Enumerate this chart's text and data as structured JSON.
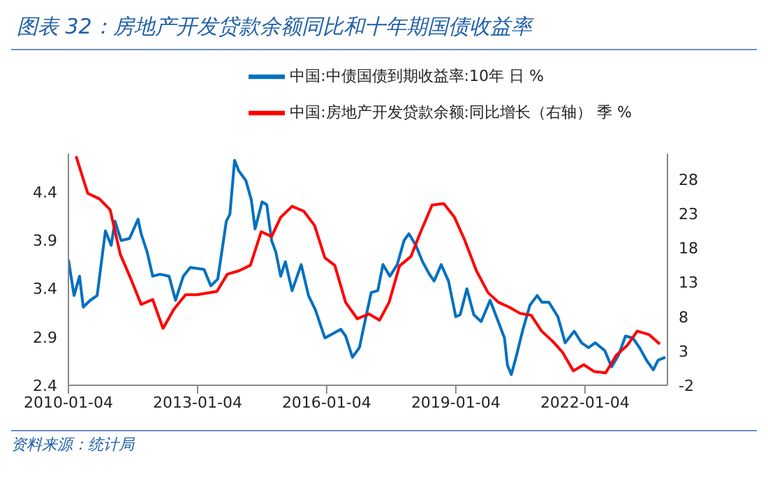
{
  "chart_data": {
    "type": "line",
    "title": "图表 32：房地产开发贷款余额同比和十年期国债收益率",
    "annotations": [
      "资料来源：统计局"
    ],
    "legend": "top",
    "marker": "none",
    "xlim": [
      "2010-01-04",
      "2023-12-05"
    ],
    "xticks": [
      "2010-01-04",
      "2013-01-04",
      "2016-01-04",
      "2019-01-04",
      "2022-01-04"
    ],
    "ylim": [
      2.4,
      4.8
    ],
    "yticks": [
      2.4,
      2.9,
      3.4,
      3.9,
      4.4
    ],
    "y2lim": [
      -2,
      31.8
    ],
    "y2ticks": [
      -2,
      3,
      8,
      13,
      18,
      23,
      28
    ],
    "series": [
      {
        "name": "中国:中债国债到期收益率:10年 日 %",
        "color": "#0070c0",
        "x": [
          "2010-01-04",
          "2010-02-21",
          "2010-04-08",
          "2010-05-10",
          "2010-07-08",
          "2010-09-05",
          "2010-10-22",
          "2010-11-14",
          "2011-01-02",
          "2011-02-03",
          "2011-03-27",
          "2011-06-06",
          "2011-08-18",
          "2011-09-13",
          "2011-11-03",
          "2011-12-20",
          "2012-02-21",
          "2012-05-07",
          "2012-07-01",
          "2012-09-05",
          "2012-11-03",
          "2013-02-28",
          "2013-04-26",
          "2013-06-24",
          "2013-09-05",
          "2013-10-05",
          "2013-11-14",
          "2013-12-20",
          "2014-02-18",
          "2014-04-05",
          "2014-05-07",
          "2014-07-05",
          "2014-08-14",
          "2014-09-24",
          "2014-10-30",
          "2014-12-10",
          "2015-01-19",
          "2015-03-17",
          "2015-06-02",
          "2015-08-03",
          "2015-10-01",
          "2015-12-20",
          "2016-02-18",
          "2016-05-03",
          "2016-06-13",
          "2016-08-10",
          "2016-10-08",
          "2016-12-06",
          "2017-01-16",
          "2017-03-13",
          "2017-04-26",
          "2017-06-24",
          "2017-08-25",
          "2017-10-22",
          "2017-12-02",
          "2018-01-30",
          "2018-03-28",
          "2018-05-25",
          "2018-07-04",
          "2018-09-02",
          "2018-11-03",
          "2019-01-04",
          "2019-02-10",
          "2019-04-08",
          "2019-06-06",
          "2019-08-07",
          "2019-10-22",
          "2019-12-24",
          "2020-02-21",
          "2020-03-17",
          "2020-04-19",
          "2020-05-29",
          "2020-07-27",
          "2020-09-24",
          "2020-11-25",
          "2021-01-04",
          "2021-03-04",
          "2021-05-19",
          "2021-07-20",
          "2021-10-05",
          "2021-12-06",
          "2022-02-03",
          "2022-04-01",
          "2022-06-21",
          "2022-08-18",
          "2022-10-15",
          "2022-12-14",
          "2023-02-14",
          "2023-04-12",
          "2023-06-10",
          "2023-08-07",
          "2023-09-16",
          "2023-11-17"
        ],
        "values": [
          3.7,
          3.33,
          3.53,
          3.21,
          3.28,
          3.33,
          3.78,
          4.0,
          3.85,
          4.1,
          3.9,
          3.92,
          4.12,
          3.97,
          3.78,
          3.53,
          3.55,
          3.53,
          3.28,
          3.53,
          3.62,
          3.6,
          3.43,
          3.5,
          4.1,
          4.17,
          4.73,
          4.62,
          4.52,
          4.32,
          4.02,
          4.3,
          4.27,
          3.9,
          3.78,
          3.53,
          3.68,
          3.38,
          3.65,
          3.33,
          3.18,
          2.89,
          2.93,
          2.98,
          2.91,
          2.69,
          2.79,
          3.13,
          3.36,
          3.38,
          3.65,
          3.53,
          3.65,
          3.9,
          3.97,
          3.85,
          3.68,
          3.55,
          3.48,
          3.65,
          3.48,
          3.11,
          3.13,
          3.4,
          3.13,
          3.06,
          3.28,
          3.08,
          2.89,
          2.61,
          2.51,
          2.69,
          2.98,
          3.23,
          3.33,
          3.26,
          3.26,
          3.11,
          2.84,
          2.96,
          2.84,
          2.79,
          2.84,
          2.76,
          2.59,
          2.71,
          2.91,
          2.89,
          2.79,
          2.66,
          2.56,
          2.66,
          2.69
        ]
      },
      {
        "name": "中国:房地产开发贷款余额:同比增长（右轴） 季 %",
        "color": "#ff0000",
        "axis": "y2",
        "x": [
          "2010-03-10",
          "2010-06-17",
          "2010-09-24",
          "2010-12-24",
          "2011-03-20",
          "2011-06-06",
          "2011-09-13",
          "2011-12-20",
          "2012-03-17",
          "2012-06-17",
          "2012-09-24",
          "2013-01-01",
          "2013-06-17",
          "2013-09-13",
          "2013-12-20",
          "2014-03-28",
          "2014-06-28",
          "2014-09-24",
          "2014-12-10",
          "2015-03-17",
          "2015-06-24",
          "2015-09-24",
          "2015-12-20",
          "2016-03-13",
          "2016-06-13",
          "2016-09-20",
          "2016-12-28",
          "2017-03-28",
          "2017-06-17",
          "2017-09-13",
          "2017-12-20",
          "2018-03-10",
          "2018-06-17",
          "2018-09-24",
          "2018-12-24",
          "2019-03-20",
          "2019-06-28",
          "2019-10-05",
          "2020-01-01",
          "2020-04-01",
          "2020-07-01",
          "2020-10-05",
          "2021-01-01",
          "2021-04-12",
          "2021-06-28",
          "2021-09-28",
          "2021-12-24",
          "2022-03-24",
          "2022-06-28",
          "2022-09-28",
          "2022-12-28",
          "2023-03-24",
          "2023-07-01",
          "2023-10-01"
        ],
        "values": [
          31.4,
          26.0,
          25.2,
          23.6,
          17.1,
          14.0,
          9.8,
          10.5,
          6.3,
          9.1,
          11.2,
          11.2,
          11.7,
          14.2,
          14.7,
          15.5,
          20.4,
          19.7,
          22.5,
          24.1,
          23.4,
          21.3,
          16.6,
          15.5,
          10.1,
          7.7,
          8.4,
          7.5,
          10.1,
          15.4,
          16.8,
          20.3,
          24.3,
          24.5,
          22.5,
          19.2,
          14.7,
          11.5,
          10.1,
          9.4,
          8.5,
          8.2,
          5.9,
          4.3,
          2.8,
          0.1,
          1.0,
          0.0,
          -0.2,
          2.4,
          3.8,
          5.9,
          5.4,
          4.0
        ]
      }
    ]
  }
}
